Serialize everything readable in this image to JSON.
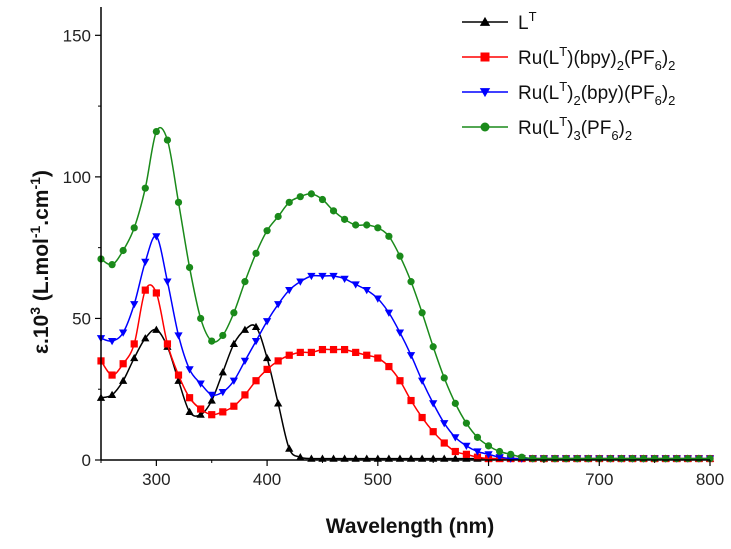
{
  "chart_data": {
    "type": "line",
    "title": "",
    "xlabel": "Wavelength (nm)",
    "ylabel": "ε.10^3 (L.mol^-1.cm^-1)",
    "ylabel_parts": {
      "eps": "ε.10",
      "exp3": "3",
      "unit_a": " (L.mol",
      "exp_a": "-1",
      "unit_b": ".cm",
      "exp_b": "-1",
      "close": ")"
    },
    "xlim": [
      250,
      800
    ],
    "ylim": [
      0,
      160
    ],
    "x_ticks": [
      300,
      400,
      500,
      600,
      700,
      800
    ],
    "y_ticks": [
      0,
      50,
      100,
      150
    ],
    "legend_position": "top-right",
    "series": [
      {
        "name": "L^T",
        "label_parts": [
          "L",
          {
            "sup": "T"
          }
        ],
        "color": "#000000",
        "marker": "triangle-up",
        "x": [
          250,
          260,
          270,
          280,
          290,
          300,
          310,
          320,
          330,
          340,
          350,
          360,
          370,
          380,
          390,
          400,
          410,
          420,
          430,
          440,
          450,
          460,
          470,
          480,
          490,
          500,
          510,
          520,
          530,
          540,
          550,
          560,
          570,
          580,
          590,
          600,
          610,
          620,
          630,
          640,
          650,
          660,
          670,
          680,
          690,
          700,
          710,
          720,
          730,
          740,
          750,
          760,
          770,
          780,
          790,
          800
        ],
        "values": [
          22,
          23,
          28,
          36,
          43,
          46,
          40,
          28,
          17,
          16,
          21,
          31,
          41,
          46,
          47,
          36,
          20,
          4,
          1,
          0.5,
          0.5,
          0.5,
          0.5,
          0.5,
          0.5,
          0.5,
          0.5,
          0.5,
          0.5,
          0.5,
          0.5,
          0.5,
          0.5,
          0.5,
          0.5,
          0.5,
          0.5,
          0.5,
          0.5,
          0.5,
          0.5,
          0.5,
          0.5,
          0.5,
          0.5,
          0.5,
          0.5,
          0.5,
          0.5,
          0.5,
          0.5,
          0.5,
          0.5,
          0.5,
          0.5,
          0.5
        ]
      },
      {
        "name": "Ru(L^T)(bpy)2(PF6)2",
        "label_parts": [
          "Ru(L",
          {
            "sup": "T"
          },
          ")(bpy)",
          {
            "sub": "2"
          },
          "(PF",
          {
            "sub": "6"
          },
          ")",
          {
            "sub": "2"
          }
        ],
        "color": "#ff0000",
        "marker": "square",
        "x": [
          250,
          260,
          270,
          280,
          290,
          300,
          310,
          320,
          330,
          340,
          350,
          360,
          370,
          380,
          390,
          400,
          410,
          420,
          430,
          440,
          450,
          460,
          470,
          480,
          490,
          500,
          510,
          520,
          530,
          540,
          550,
          560,
          570,
          580,
          590,
          600,
          610,
          620,
          630,
          640,
          650,
          660,
          670,
          680,
          690,
          700,
          710,
          720,
          730,
          740,
          750,
          760,
          770,
          780,
          790,
          800
        ],
        "values": [
          35,
          30,
          34,
          41,
          60,
          59,
          41,
          30,
          22,
          18,
          16,
          17,
          19,
          23,
          28,
          32,
          35,
          37,
          38,
          38,
          39,
          39,
          39,
          38,
          37,
          36,
          33,
          28,
          21,
          15,
          10,
          6,
          3,
          2,
          1,
          0.5,
          0.5,
          0.5,
          0.5,
          0.5,
          0.5,
          0.5,
          0.5,
          0.5,
          0.5,
          0.5,
          0.5,
          0.5,
          0.5,
          0.5,
          0.5,
          0.5,
          0.5,
          0.5,
          0.5,
          0.5
        ]
      },
      {
        "name": "Ru(L^T)2(bpy)(PF6)2",
        "label_parts": [
          "Ru(L",
          {
            "sup": "T"
          },
          ")",
          {
            "sub": "2"
          },
          "(bpy)(PF",
          {
            "sub": "6"
          },
          ")",
          {
            "sub": "2"
          }
        ],
        "color": "#0000ff",
        "marker": "triangle-down",
        "x": [
          250,
          260,
          270,
          280,
          290,
          300,
          310,
          320,
          330,
          340,
          350,
          360,
          370,
          380,
          390,
          400,
          410,
          420,
          430,
          440,
          450,
          460,
          470,
          480,
          490,
          500,
          510,
          520,
          530,
          540,
          550,
          560,
          570,
          580,
          590,
          600,
          610,
          620,
          630,
          640,
          650,
          660,
          670,
          680,
          690,
          700,
          710,
          720,
          730,
          740,
          750,
          760,
          770,
          780,
          790,
          800
        ],
        "values": [
          43,
          42,
          45,
          55,
          70,
          79,
          63,
          44,
          32,
          27,
          23,
          24,
          28,
          35,
          42,
          49,
          55,
          60,
          63,
          65,
          65,
          65,
          64,
          62,
          60,
          57,
          52,
          45,
          37,
          28,
          20,
          13,
          8,
          5,
          3,
          2,
          1,
          0.5,
          0.5,
          0.5,
          0.5,
          0.5,
          0.5,
          0.5,
          0.5,
          0.5,
          0.5,
          0.5,
          0.5,
          0.5,
          0.5,
          0.5,
          0.5,
          0.5,
          0.5,
          0.5
        ]
      },
      {
        "name": "Ru(L^T)3(PF6)2",
        "label_parts": [
          "Ru(L",
          {
            "sup": "T"
          },
          ")",
          {
            "sub": "3"
          },
          "(PF",
          {
            "sub": "6"
          },
          ")",
          {
            "sub": "2"
          }
        ],
        "color": "#1a8a1a",
        "marker": "circle",
        "x": [
          250,
          260,
          270,
          280,
          290,
          300,
          310,
          320,
          330,
          340,
          350,
          360,
          370,
          380,
          390,
          400,
          410,
          420,
          430,
          440,
          450,
          460,
          470,
          480,
          490,
          500,
          510,
          520,
          530,
          540,
          550,
          560,
          570,
          580,
          590,
          600,
          610,
          620,
          630,
          640,
          650,
          660,
          670,
          680,
          690,
          700,
          710,
          720,
          730,
          740,
          750,
          760,
          770,
          780,
          790,
          800
        ],
        "values": [
          71,
          69,
          74,
          82,
          96,
          116,
          113,
          91,
          68,
          50,
          42,
          44,
          52,
          63,
          73,
          81,
          86,
          91,
          93,
          94,
          92,
          88,
          85,
          83,
          83,
          82,
          79,
          72,
          63,
          52,
          40,
          29,
          20,
          13,
          8,
          5,
          3,
          2,
          1,
          0.5,
          0.5,
          0.5,
          0.5,
          0.5,
          0.5,
          0.5,
          0.5,
          0.5,
          0.5,
          0.5,
          0.5,
          0.5,
          0.5,
          0.5,
          0.5,
          0.5
        ]
      }
    ]
  }
}
